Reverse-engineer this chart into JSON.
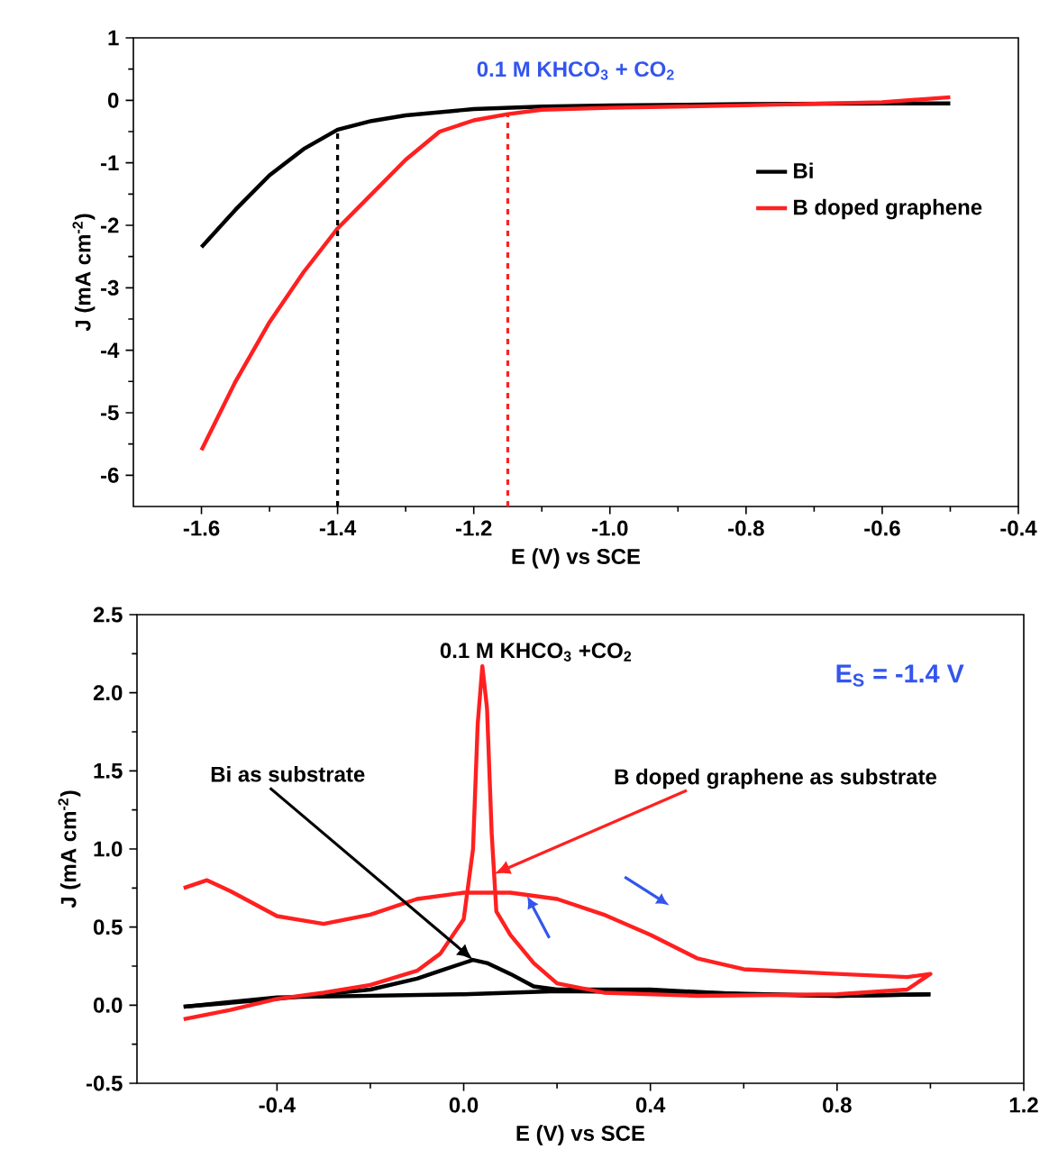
{
  "chart_data": [
    {
      "type": "line",
      "xlabel": "E (V) vs SCE",
      "ylabel": "J (mA cm$^{-2}$)",
      "annotations": [
        "0.1 M KHCO$_{3}$ + CO$_{2}$"
      ],
      "xlim": [
        -1.7,
        -0.4
      ],
      "xticks": [
        -1.6,
        -1.4,
        -1.2,
        {
          "value": -1.0,
          "label": "-1.0"
        },
        -0.8,
        -0.6,
        -0.4
      ],
      "ylim": [
        -6.5,
        1
      ],
      "yticks": [
        -6,
        -5,
        -4,
        -3,
        -2,
        -1,
        0,
        1
      ],
      "legend": "top right",
      "marker": "none",
      "line_style": "solid",
      "ref_lines": [
        {
          "axis": "x",
          "value": -1.4,
          "color": "#000000",
          "line_style": "dashed"
        },
        {
          "axis": "x",
          "value": -1.15,
          "color": "#ff2020",
          "line_style": "dashed"
        }
      ],
      "series": [
        {
          "name": "Bi",
          "color": "#000000",
          "x": [
            -1.6,
            -1.55,
            -1.5,
            -1.45,
            -1.4,
            -1.35,
            -1.3,
            -1.2,
            -1.1,
            -1.0,
            -0.8,
            -0.6,
            -0.5
          ],
          "values": [
            -2.35,
            -1.75,
            -1.2,
            -0.78,
            -0.47,
            -0.33,
            -0.24,
            -0.14,
            -0.1,
            -0.08,
            -0.06,
            -0.05,
            -0.05
          ]
        },
        {
          "name": "B doped graphene",
          "color": "#ff2020",
          "x": [
            -1.6,
            -1.55,
            -1.5,
            -1.45,
            -1.4,
            -1.35,
            -1.3,
            -1.25,
            -1.2,
            -1.15,
            -1.1,
            -1.0,
            -0.8,
            -0.6,
            -0.5
          ],
          "values": [
            -5.6,
            -4.5,
            -3.55,
            -2.75,
            -2.05,
            -1.5,
            -0.95,
            -0.5,
            -0.32,
            -0.22,
            -0.15,
            -0.12,
            -0.08,
            -0.03,
            0.05
          ]
        }
      ]
    },
    {
      "type": "line",
      "xlabel": "E (V) vs SCE",
      "ylabel": "J (mA cm$^{-2}$)",
      "annotations": [
        "0.1 M KHCO$_{3}$ +CO$_{2}$",
        "E$_{S}$ = -1.4 V",
        {
          "text": "Bi as substrate",
          "x": 0.02,
          "y": 0.29
        },
        {
          "text": "B doped graphene as substrate",
          "x": 0.065,
          "y": 0.84
        }
      ],
      "xlim": [
        -0.7,
        1.2
      ],
      "xticks": [
        -0.4,
        {
          "value": 0.0,
          "label": "0.0"
        },
        0.4,
        0.8,
        1.2
      ],
      "ylim": [
        -0.5,
        2.5
      ],
      "yticks": [
        -0.5,
        {
          "value": 0.0,
          "label": "0.0"
        },
        0.5,
        {
          "value": 1.0,
          "label": "1.0"
        },
        1.5,
        {
          "value": 2.0,
          "label": "2.0"
        },
        2.5
      ],
      "marker": "none",
      "line_style": "solid",
      "series": [
        {
          "color": "#000000",
          "x": [
            -0.6,
            -0.4,
            -0.2,
            -0.1,
            -0.05,
            0.0,
            0.02,
            0.05,
            0.1,
            0.15,
            0.2,
            0.4,
            0.6,
            0.8,
            1.0
          ],
          "values": [
            -0.01,
            0.04,
            0.1,
            0.17,
            0.22,
            0.27,
            0.29,
            0.27,
            0.2,
            0.12,
            0.1,
            0.1,
            0.07,
            0.06,
            0.07
          ]
        },
        {
          "color": "#000000",
          "x": [
            1.0,
            0.8,
            0.5,
            0.2,
            0.0,
            -0.2,
            -0.4,
            -0.6
          ],
          "values": [
            0.07,
            0.06,
            0.08,
            0.09,
            0.07,
            0.06,
            0.05,
            -0.01
          ]
        },
        {
          "color": "#ff2020",
          "x": [
            -0.6,
            -0.5,
            -0.4,
            -0.3,
            -0.2,
            -0.1,
            -0.05,
            0.0,
            0.02,
            0.03,
            0.04,
            0.05,
            0.06,
            0.07,
            0.1,
            0.15,
            0.2,
            0.3,
            0.5,
            0.8,
            0.95,
            1.0,
            0.95,
            0.8,
            0.6,
            0.5,
            0.4,
            0.3,
            0.2,
            0.1,
            0.0,
            -0.1,
            -0.2,
            -0.3,
            -0.4,
            -0.5,
            -0.55,
            -0.6
          ],
          "values": [
            -0.09,
            -0.03,
            0.04,
            0.08,
            0.13,
            0.22,
            0.33,
            0.55,
            1.0,
            1.8,
            2.17,
            1.9,
            1.1,
            0.6,
            0.45,
            0.27,
            0.14,
            0.08,
            0.06,
            0.07,
            0.1,
            0.2,
            0.18,
            0.2,
            0.23,
            0.3,
            0.45,
            0.58,
            0.68,
            0.72,
            0.72,
            0.68,
            0.58,
            0.52,
            0.57,
            0.73,
            0.8,
            0.75
          ]
        }
      ]
    }
  ]
}
